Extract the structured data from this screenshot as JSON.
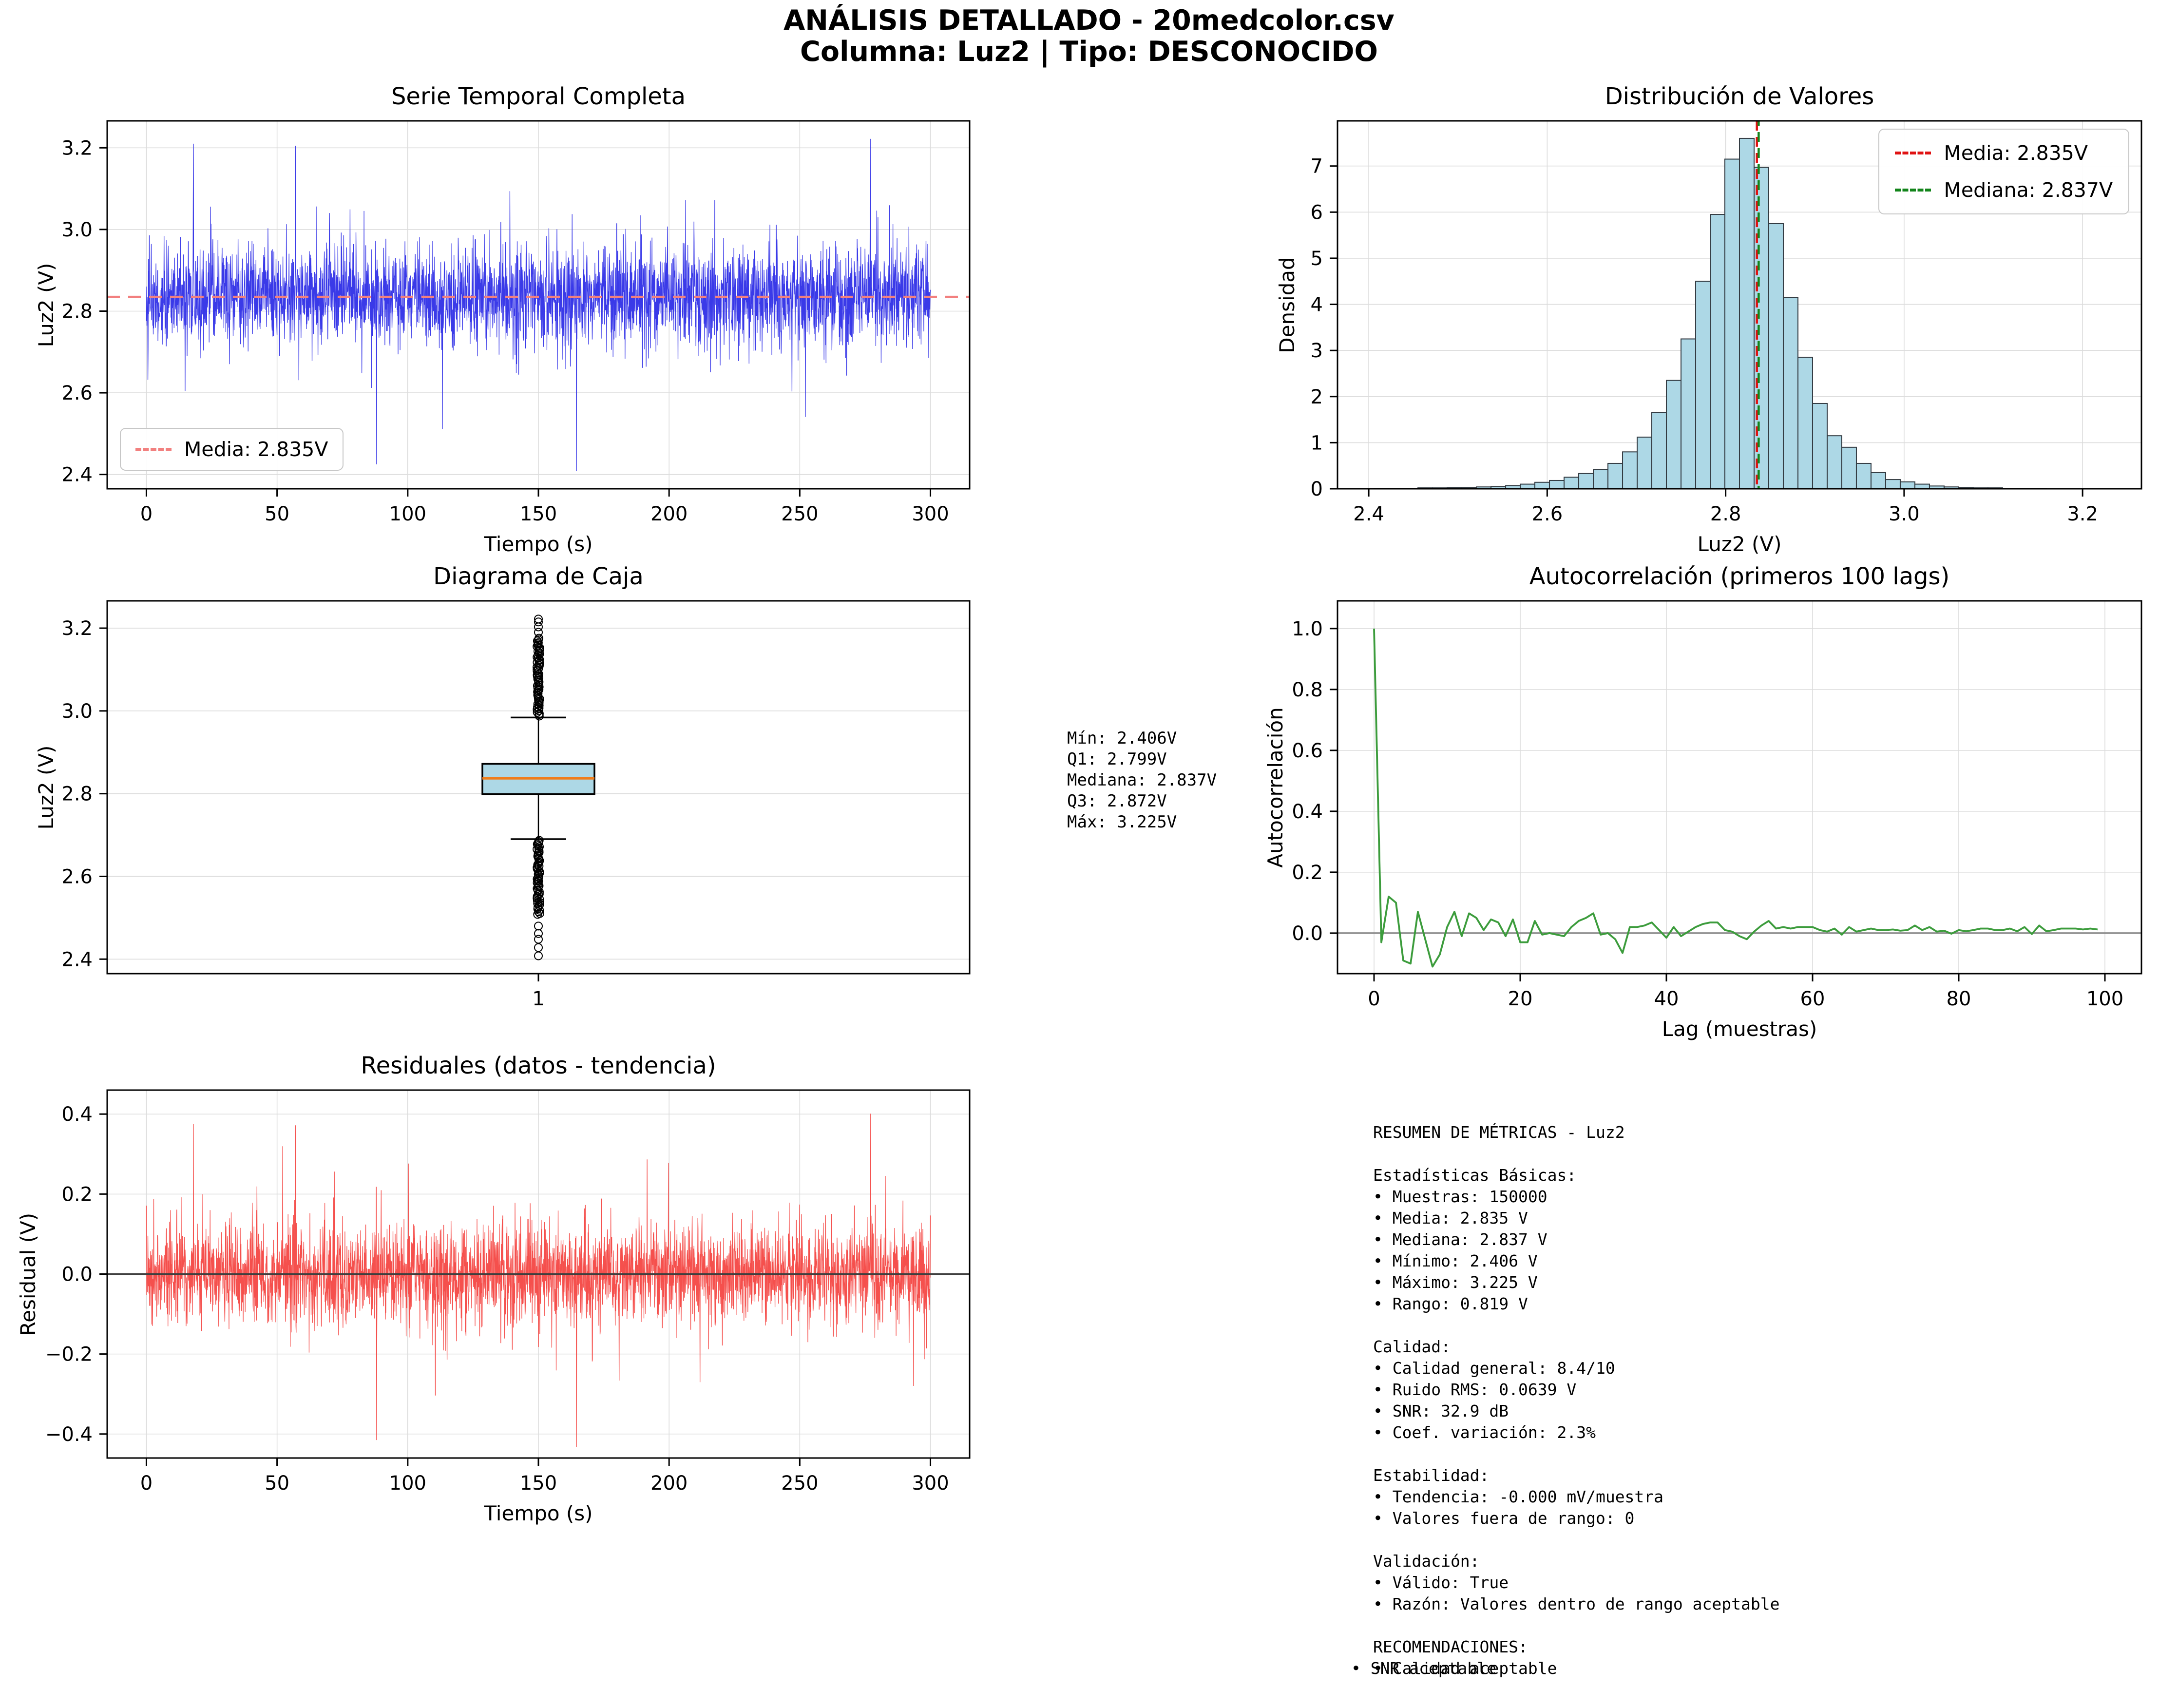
{
  "header": {
    "line1": "ANÁLISIS DETALLADO - 20medcolor.csv",
    "line2": "Columna: Luz2 | Tipo: DESCONOCIDO"
  },
  "colors": {
    "series_blue": "#3a3ae8",
    "mean_pink": "#f2807f",
    "hist_fill": "#add8e6",
    "hist_edge": "#333b42",
    "mean_red": "#e01212",
    "median_green": "#12841a",
    "box_fill": "#add8e6",
    "box_median_orange": "#f07d1a",
    "acf_green": "#3c9c3c",
    "resid_red": "#f5504d",
    "grid_gray": "#dcdcdc",
    "zero_gray": "#909090",
    "zero_dark": "#3f3f3f",
    "frame_black": "#000000"
  },
  "chart_data": [
    {
      "id": "serie",
      "type": "line",
      "title": "Serie Temporal Completa",
      "xlabel": "Tiempo (s)",
      "ylabel": "Luz2 (V)",
      "xlim": [
        -15,
        315
      ],
      "ylim": [
        2.365,
        3.266
      ],
      "xtick_values": [
        0,
        50,
        100,
        150,
        200,
        250,
        300
      ],
      "xtick_labels": [
        "0",
        "50",
        "100",
        "150",
        "200",
        "250",
        "300"
      ],
      "ytick_values": [
        2.4,
        2.6,
        2.8,
        3.0,
        3.2
      ],
      "ytick_labels": [
        "2.4",
        "2.6",
        "2.8",
        "3.0",
        "3.2"
      ],
      "grid": "both",
      "mean_line": 2.835,
      "legend": [
        {
          "label": "Media: 2.835V",
          "color_key": "mean_pink"
        }
      ],
      "signal": {
        "n": 3200,
        "seed": 42,
        "mean": 2.835,
        "sigma": 0.062,
        "spike_prob": 0.013,
        "spike_min": 0.06,
        "spike_max": 0.24,
        "min": 2.406,
        "max": 3.225,
        "x_start": 0,
        "x_end": 300,
        "inject": [
          [
            2955,
            3.222
          ],
          [
            192,
            3.21
          ],
          [
            608,
            3.205
          ],
          [
            1755,
            2.408
          ],
          [
            939,
            2.425
          ]
        ]
      }
    },
    {
      "id": "hist",
      "type": "bar",
      "title": "Distribución de Valores",
      "xlabel": "Luz2 (V)",
      "ylabel": "Densidad",
      "xlim": [
        2.365,
        3.266
      ],
      "ylim": [
        0,
        7.98
      ],
      "xtick_values": [
        2.4,
        2.6,
        2.8,
        3.0,
        3.2
      ],
      "xtick_labels": [
        "2.4",
        "2.6",
        "2.8",
        "3.0",
        "3.2"
      ],
      "ytick_values": [
        0,
        1,
        2,
        3,
        4,
        5,
        6,
        7
      ],
      "ytick_labels": [
        "0",
        "1",
        "2",
        "3",
        "4",
        "5",
        "6",
        "7"
      ],
      "grid": "both",
      "bin_start": 2.406,
      "bin_width": 0.01638,
      "densities": [
        0.01,
        0.01,
        0.01,
        0.02,
        0.02,
        0.03,
        0.03,
        0.04,
        0.05,
        0.07,
        0.1,
        0.14,
        0.18,
        0.25,
        0.33,
        0.42,
        0.55,
        0.8,
        1.12,
        1.65,
        2.35,
        3.25,
        4.5,
        5.95,
        7.15,
        7.6,
        6.97,
        5.75,
        4.15,
        2.85,
        1.85,
        1.15,
        0.9,
        0.55,
        0.35,
        0.2,
        0.15,
        0.1,
        0.06,
        0.04,
        0.03,
        0.02,
        0.02,
        0.01,
        0.01,
        0.01,
        0.005,
        0.005,
        0.005,
        0.005
      ],
      "mean_line": 2.835,
      "median_line": 2.837,
      "legend": [
        {
          "label": "Media: 2.835V",
          "color_key": "mean_red"
        },
        {
          "label": "Mediana: 2.837V",
          "color_key": "median_green"
        }
      ]
    },
    {
      "id": "box",
      "type": "box",
      "title": "Diagrama de Caja",
      "xlabel": "",
      "ylabel": "Luz2 (V)",
      "xlim": [
        0,
        2
      ],
      "ylim": [
        2.365,
        3.266
      ],
      "xtick_values": [
        1
      ],
      "xtick_labels": [
        "1"
      ],
      "ytick_values": [
        2.4,
        2.6,
        2.8,
        3.0,
        3.2
      ],
      "ytick_labels": [
        "2.4",
        "2.6",
        "2.8",
        "3.0",
        "3.2"
      ],
      "grid": "y",
      "box": {
        "q1": 2.799,
        "median": 2.837,
        "q3": 2.872,
        "whisker_low": 2.69,
        "whisker_high": 2.984,
        "min": 2.406,
        "max": 3.225
      },
      "outliers": {
        "top_dense": [
          2.988,
          3.175,
          60
        ],
        "top_isolated": [
          3.19,
          3.203,
          3.215,
          3.222
        ],
        "bottom_dense": [
          2.508,
          2.688,
          55
        ],
        "bottom_isolated": [
          2.48,
          2.462,
          2.448,
          2.428,
          2.408
        ]
      }
    },
    {
      "id": "acf",
      "type": "line",
      "title": "Autocorrelación (primeros 100 lags)",
      "xlabel": "Lag (muestras)",
      "ylabel": "Autocorrelación",
      "xlim": [
        -5,
        105
      ],
      "ylim": [
        -0.133,
        1.091
      ],
      "xtick_values": [
        0,
        20,
        40,
        60,
        80,
        100
      ],
      "xtick_labels": [
        "0",
        "20",
        "40",
        "60",
        "80",
        "100"
      ],
      "ytick_values": [
        0.0,
        0.2,
        0.4,
        0.6,
        0.8,
        1.0
      ],
      "ytick_labels": [
        "0.0",
        "0.2",
        "0.4",
        "0.6",
        "0.8",
        "1.0"
      ],
      "grid": "both",
      "values": [
        1.0,
        -0.03,
        0.12,
        0.1,
        -0.09,
        -0.1,
        0.07,
        -0.02,
        -0.11,
        -0.07,
        0.02,
        0.07,
        -0.01,
        0.065,
        0.05,
        0.01,
        0.045,
        0.035,
        -0.01,
        0.045,
        -0.03,
        -0.03,
        0.04,
        -0.005,
        0.0,
        -0.005,
        -0.01,
        0.02,
        0.04,
        0.05,
        0.065,
        -0.005,
        0.0,
        -0.02,
        -0.065,
        0.02,
        0.02,
        0.025,
        0.035,
        0.01,
        -0.015,
        0.02,
        -0.01,
        0.005,
        0.02,
        0.03,
        0.035,
        0.035,
        0.01,
        0.005,
        -0.01,
        -0.02,
        0.005,
        0.025,
        0.04,
        0.015,
        0.02,
        0.015,
        0.02,
        0.02,
        0.02,
        0.01,
        0.005,
        0.015,
        -0.005,
        0.02,
        0.005,
        0.01,
        0.015,
        0.01,
        0.01,
        0.012,
        0.008,
        0.01,
        0.025,
        0.01,
        0.02,
        0.005,
        0.008,
        -0.002,
        0.01,
        0.006,
        0.01,
        0.015,
        0.015,
        0.01,
        0.01,
        0.015,
        0.006,
        0.02,
        -0.003,
        0.025,
        0.006,
        0.01,
        0.015,
        0.015,
        0.015,
        0.012,
        0.015,
        0.012
      ]
    },
    {
      "id": "resid",
      "type": "line",
      "title": "Residuales (datos - tendencia)",
      "xlabel": "Tiempo (s)",
      "ylabel": "Residual (V)",
      "xlim": [
        -15,
        315
      ],
      "ylim": [
        -0.46,
        0.46
      ],
      "xtick_values": [
        0,
        50,
        100,
        150,
        200,
        250,
        300
      ],
      "xtick_labels": [
        "0",
        "50",
        "100",
        "150",
        "200",
        "250",
        "300"
      ],
      "ytick_values": [
        -0.4,
        -0.2,
        0.0,
        0.2,
        0.4
      ],
      "ytick_labels": [
        "−0.4",
        "−0.2",
        "0.0",
        "0.2",
        "0.4"
      ],
      "grid": "both",
      "zero_line": 0,
      "signal": {
        "n": 3200,
        "seed": 7,
        "mean": 0,
        "sigma": 0.062,
        "spike_prob": 0.013,
        "spike_min": 0.06,
        "spike_max": 0.25,
        "min": -0.435,
        "max": 0.403,
        "x_start": 0,
        "x_end": 300,
        "inject": [
          [
            2955,
            0.401
          ],
          [
            192,
            0.375
          ],
          [
            608,
            0.372
          ],
          [
            1755,
            -0.432
          ],
          [
            939,
            -0.415
          ]
        ]
      }
    }
  ],
  "stats_block": {
    "lines": [
      "Mín: 2.406V",
      "Q1: 2.799V",
      "Mediana: 2.837V",
      "Q3: 2.872V",
      "Máx: 3.225V"
    ]
  },
  "resumen_block": {
    "lines": [
      "RESUMEN DE MÉTRICAS - Luz2",
      "",
      "Estadísticas Básicas:",
      "• Muestras: 150000",
      "• Media: 2.835 V",
      "• Mediana: 2.837 V",
      "• Mínimo: 2.406 V",
      "• Máximo: 3.225 V",
      "• Rango: 0.819 V",
      "",
      "Calidad:",
      "• Calidad general: 8.4/10",
      "• Ruido RMS: 0.0639 V",
      "• SNR: 32.9 dB",
      "• Coef. variación: 2.3%",
      "",
      "Estabilidad:",
      "• Tendencia: -0.000 mV/muestra",
      "• Valores fuera de rango: 0",
      "",
      "Validación:",
      "• Válido: True",
      "• Razón: Valores dentro de rango aceptable",
      "",
      "RECOMENDACIONES:",
      "• Calidad aceptable"
    ],
    "footer_line": "• SNR aceptable"
  }
}
